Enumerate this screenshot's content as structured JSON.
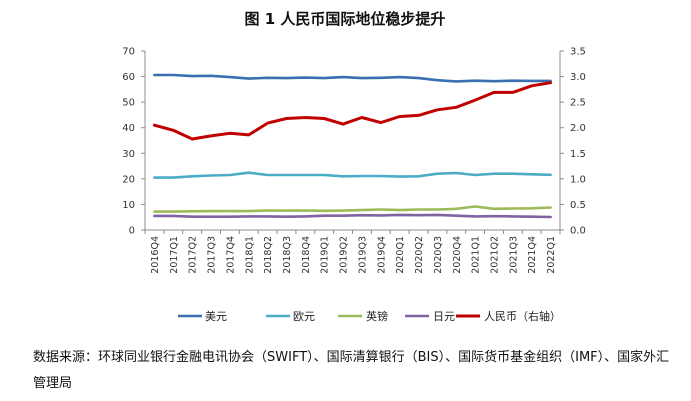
{
  "chart_data": {
    "type": "line",
    "title": "图 1 人民币国际地位稳步提升",
    "categories": [
      "2016Q4",
      "2017Q1",
      "2017Q2",
      "2017Q3",
      "2017Q4",
      "2018Q1",
      "2018Q2",
      "2018Q3",
      "2018Q4",
      "2019Q1",
      "2019Q2",
      "2019Q3",
      "2019Q4",
      "2020Q1",
      "2020Q2",
      "2020Q3",
      "2020Q4",
      "2021Q1",
      "2021Q2",
      "2021Q3",
      "2021Q4",
      "2022Q1"
    ],
    "ylim_left": [
      0,
      70
    ],
    "yticks_left": [
      "0",
      "10",
      "20",
      "30",
      "40",
      "50",
      "60",
      "70"
    ],
    "ylim_right": [
      0,
      3.5
    ],
    "yticks_right": [
      "0.0",
      "0.5",
      "1.0",
      "1.5",
      "2.0",
      "2.5",
      "3.0",
      "3.5"
    ],
    "series": [
      {
        "name": "美元",
        "axis": "left",
        "color": "#3a6fb0",
        "values": [
          60.6,
          60.6,
          60.2,
          60.3,
          59.8,
          59.2,
          59.5,
          59.4,
          59.6,
          59.4,
          59.8,
          59.4,
          59.5,
          59.8,
          59.4,
          58.6,
          58.1,
          58.4,
          58.2,
          58.4,
          58.3,
          58.3
        ]
      },
      {
        "name": "欧元",
        "axis": "left",
        "color": "#4bacc6",
        "values": [
          20.5,
          20.5,
          21.0,
          21.3,
          21.5,
          22.4,
          21.5,
          21.5,
          21.5,
          21.5,
          21.0,
          21.1,
          21.1,
          20.9,
          21.0,
          22.0,
          22.3,
          21.5,
          22.0,
          22.0,
          21.8,
          21.6
        ]
      },
      {
        "name": "英镑",
        "axis": "left",
        "color": "#9bbb59",
        "values": [
          7.2,
          7.2,
          7.3,
          7.4,
          7.4,
          7.4,
          7.6,
          7.6,
          7.6,
          7.5,
          7.6,
          7.8,
          8.0,
          7.8,
          8.0,
          8.0,
          8.3,
          9.2,
          8.3,
          8.4,
          8.5,
          8.8
        ]
      },
      {
        "name": "日元",
        "axis": "left",
        "color": "#8064a2",
        "values": [
          5.5,
          5.5,
          5.2,
          5.2,
          5.2,
          5.3,
          5.3,
          5.2,
          5.3,
          5.6,
          5.6,
          5.8,
          5.7,
          5.9,
          5.8,
          5.9,
          5.6,
          5.3,
          5.4,
          5.3,
          5.2,
          5.1
        ]
      },
      {
        "name": "人民币（右轴）",
        "axis": "right",
        "color": "#c00000",
        "values": [
          2.05,
          1.95,
          1.78,
          1.84,
          1.89,
          1.86,
          2.09,
          2.18,
          2.2,
          2.18,
          2.07,
          2.2,
          2.1,
          2.22,
          2.24,
          2.35,
          2.4,
          2.54,
          2.69,
          2.69,
          2.82,
          2.88
        ]
      }
    ],
    "grid": false,
    "legend_position": "bottom"
  },
  "source": "数据来源：环球同业银行金融电讯协会（SWIFT）、国际清算银行（BIS）、国际货币基金组织（IMF）、国家外汇管理局"
}
